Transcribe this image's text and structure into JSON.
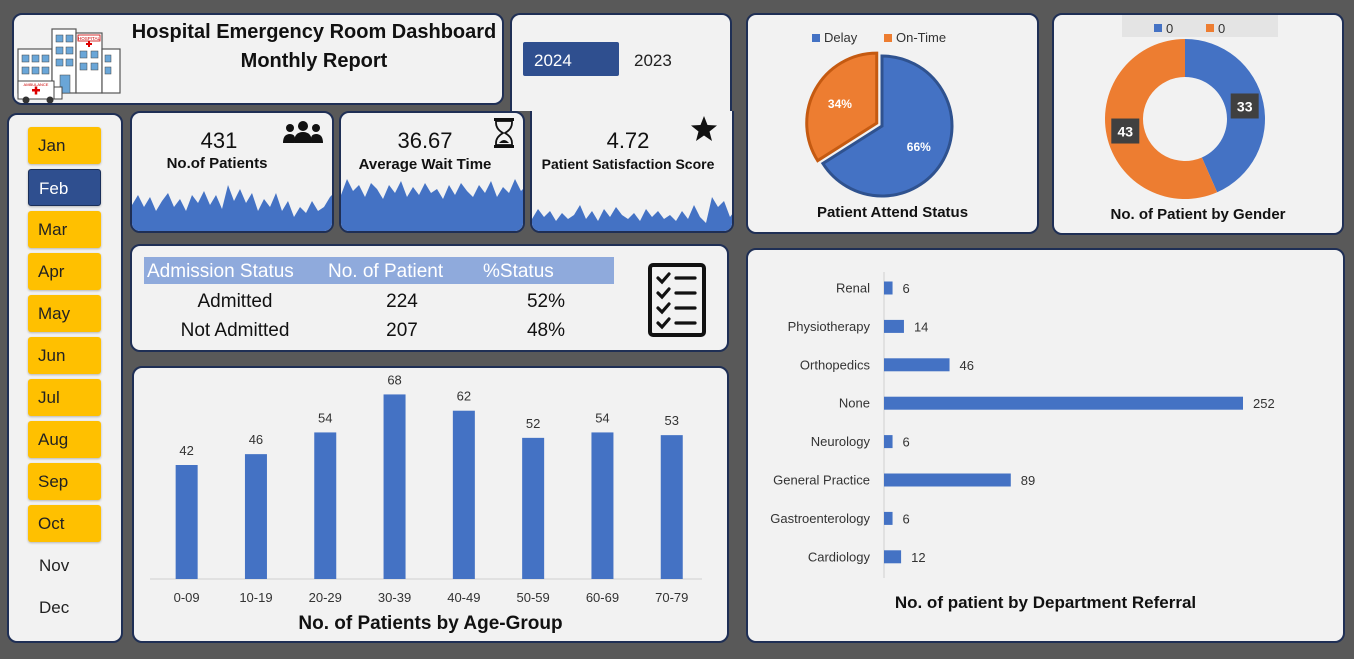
{
  "header": {
    "title": "Hospital Emergency Room Dashboard",
    "subtitle": "Monthly Report",
    "hospital_sign": "HOSPITAL",
    "ambulance_sign": "AMBULANCE"
  },
  "years": {
    "selected": "2024",
    "other": "2023"
  },
  "months": [
    "Jan",
    "Feb",
    "Mar",
    "Apr",
    "May",
    "Jun",
    "Jul",
    "Aug",
    "Sep",
    "Oct",
    "Nov",
    "Dec"
  ],
  "selected_month": "Feb",
  "available_months": 10,
  "kpis": [
    {
      "value": "431",
      "label": "No.of Patients",
      "icon": "people-icon"
    },
    {
      "value": "36.67",
      "label": "Average Wait Time",
      "icon": "hourglass-icon"
    },
    {
      "value": "4.72",
      "label": "Patient Satisfaction Score",
      "icon": "star-icon"
    }
  ],
  "admission_table": {
    "headers": [
      "Admission Status",
      "No. of Patient",
      "%Status"
    ],
    "rows": [
      [
        "Admitted",
        "224",
        "52%"
      ],
      [
        "Not Admitted",
        "207",
        "48%"
      ]
    ],
    "icon": "checklist-icon"
  },
  "colors": {
    "blue": "#4472c4",
    "orange": "#ed7d31",
    "yellow": "#ffc000",
    "navy": "#2f4f8f",
    "header_row": "#8faadc"
  },
  "chart_data": [
    {
      "type": "pie",
      "title": "Patient Attend Status",
      "legend_position": "top",
      "labels": [
        "Delay",
        "On-Time"
      ],
      "values": [
        66,
        34
      ],
      "data_labels": [
        "66%",
        "34%"
      ]
    },
    {
      "type": "pie",
      "title": "No. of Patient by Gender",
      "style": "donut",
      "legend_position": "top",
      "legend": [
        "0",
        "0"
      ],
      "values": [
        33,
        43
      ],
      "data_labels": [
        "33",
        "43"
      ]
    },
    {
      "type": "bar",
      "title": "No. of Patients by Age-Group",
      "categories": [
        "0-09",
        "10-19",
        "20-29",
        "30-39",
        "40-49",
        "50-59",
        "60-69",
        "70-79"
      ],
      "values": [
        42,
        46,
        54,
        68,
        62,
        52,
        54,
        53
      ],
      "ylim": [
        0,
        70
      ],
      "grid": false
    },
    {
      "type": "bar",
      "orientation": "horizontal",
      "title": "No. of patient by Department Referral",
      "categories": [
        "Renal",
        "Physiotherapy",
        "Orthopedics",
        "None",
        "Neurology",
        "General Practice",
        "Gastroenterology",
        "Cardiology"
      ],
      "values": [
        6,
        14,
        46,
        252,
        6,
        89,
        6,
        12
      ],
      "xlim": [
        0,
        260
      ],
      "grid": false
    }
  ]
}
